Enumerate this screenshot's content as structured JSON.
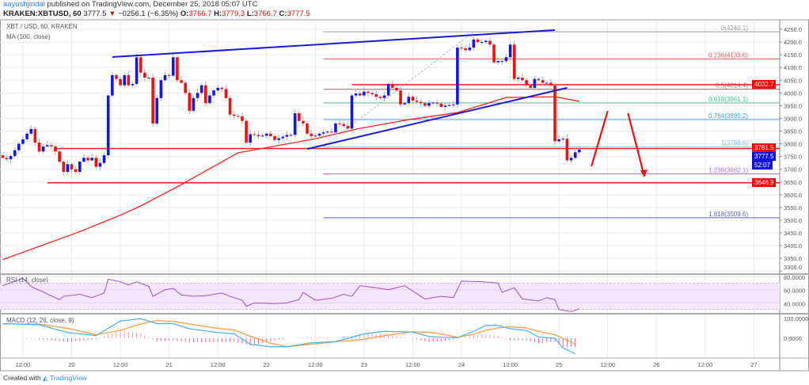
{
  "header": {
    "user": "aayushjindal",
    "published": "published on TradingView.com, December 25, 2018 05:07 UTC",
    "symbol": "KRAKEN:XBTUSD, 60",
    "last": "3777.5",
    "change": "−0256.1 (−6.35%)",
    "change_icon": "triangle-down-icon",
    "o_label": "O:",
    "o": "3766.7",
    "h_label": "H:",
    "h": "3779.3",
    "l_label": "L:",
    "l": "3766.7",
    "c_label": "C:",
    "c": "3777.5"
  },
  "legend": {
    "main": "XBT / USD, 60, KRAKEN",
    "ma": "MA (100, close)",
    "rsi": "RSI (14, close)",
    "macd": "MACD (12, 26, close, 9)"
  },
  "badges": {
    "resistance": {
      "text": "4032.7",
      "color": "#ff0000"
    },
    "level_upper": {
      "text": "3781.5",
      "color": "#ff0000"
    },
    "price": {
      "text": "3777.5",
      "color": "#1010ee"
    },
    "countdown": {
      "text": "52:07",
      "color": "#1010ee"
    },
    "level_lower": {
      "text": "3646.9",
      "color": "#ff0000"
    }
  },
  "footer": {
    "created": "Created with",
    "brand": "TradingView",
    "logo_icon": "tradingview-logo-icon"
  },
  "colors": {
    "up": "#1414f0",
    "down": "#ee1111",
    "ma": "#ff2020",
    "rsi": "#a050c8",
    "macd": "#4ab0f0",
    "signal": "#ff9a40",
    "hist": "#f0609a"
  },
  "chart_data": [
    {
      "type": "candlestick",
      "title": "XBT / USD, 60, KRAKEN",
      "interval": "60",
      "start": "19 07:00",
      "closes": [
        3745,
        3740,
        3752,
        3775,
        3800,
        3818,
        3840,
        3858,
        3805,
        3770,
        3790,
        3795,
        3790,
        3770,
        3730,
        3690,
        3720,
        3700,
        3690,
        3730,
        3745,
        3735,
        3745,
        3710,
        3725,
        3755,
        3990,
        4070,
        4055,
        4030,
        4070,
        4030,
        4035,
        4140,
        4080,
        4060,
        4060,
        3880,
        3980,
        4050,
        4070,
        4068,
        4140,
        4050,
        4040,
        4000,
        3930,
        3980,
        4000,
        4030,
        3960,
        3990,
        4010,
        4020,
        4015,
        3980,
        3915,
        3910,
        3908,
        3890,
        3805,
        3838,
        3835,
        3830,
        3832,
        3840,
        3830,
        3815,
        3822,
        3828,
        3835,
        3835,
        3920,
        3890,
        3880,
        3840,
        3830,
        3832,
        3840,
        3845,
        3848,
        3845,
        3880,
        3878,
        3870,
        3860,
        3990,
        3998,
        3990,
        4005,
        4000,
        3995,
        3985,
        3980,
        3990,
        4035,
        4020,
        4010,
        3955,
        3960,
        3985,
        3970,
        3965,
        3960,
        3950,
        3960,
        3962,
        3958,
        3945,
        3950,
        3952,
        3955,
        4178,
        4175,
        4168,
        4178,
        4210,
        4200,
        4200,
        4205,
        4190,
        4120,
        4125,
        4125,
        4140,
        4190,
        4055,
        4060,
        4050,
        4030,
        4020,
        4055,
        4050,
        4040,
        4040,
        4030,
        3810,
        3818,
        3820,
        3735,
        3745,
        3766.7,
        3777.5
      ],
      "ma100": {
        "label": "MA (100, close)",
        "points": [
          [
            "19 07:00",
            3345
          ],
          [
            "20 02:00",
            3455
          ],
          [
            "20 12:00",
            3520
          ],
          [
            "20 17:00",
            3556
          ],
          [
            "21 03:00",
            3640
          ],
          [
            "21 17:00",
            3765
          ],
          [
            "22 12:00",
            3820
          ],
          [
            "22 23:00",
            3861
          ],
          [
            "23 11:00",
            3895
          ],
          [
            "23 23:00",
            3923
          ],
          [
            "24 11:00",
            3982
          ],
          [
            "24 23:00",
            3985
          ],
          [
            "25 05:00",
            3967
          ]
        ]
      },
      "y_ticks": [
        4250,
        4200,
        4150,
        4100,
        4050,
        4000,
        3950,
        3900,
        3850,
        3800,
        3750,
        3700,
        3650,
        3600,
        3550,
        3500,
        3450,
        3400,
        3350,
        3300
      ],
      "x_ticks": [
        [
          "19 12:00",
          "12:00"
        ],
        [
          "20 00:00",
          "20"
        ],
        [
          "20 12:00",
          "12:00"
        ],
        [
          "21 00:00",
          "21"
        ],
        [
          "21 12:00",
          "12:00"
        ],
        [
          "22 00:00",
          "22"
        ],
        [
          "22 12:00",
          "12:00"
        ],
        [
          "23 00:00",
          "23"
        ],
        [
          "23 12:00",
          "12:00"
        ],
        [
          "24 00:00",
          "24"
        ],
        [
          "24 12:00",
          "12:00"
        ],
        [
          "25 00:00",
          "25"
        ],
        [
          "25 12:00",
          "12:00"
        ],
        [
          "26 00:00",
          "26"
        ],
        [
          "26 12:00",
          "12:00"
        ],
        [
          "27 00:00",
          "27"
        ]
      ],
      "ylim": [
        3300,
        4250
      ],
      "grid": true,
      "horizontal_levels": [
        {
          "price": 4032.7,
          "from": "22 21:00"
        },
        {
          "price": 3781.5,
          "from": "19 20:00"
        },
        {
          "price": 3646.9,
          "from": "19 18:00"
        }
      ],
      "trendlines": [
        {
          "from": [
            "20 10:00",
            4141
          ],
          "to": [
            "24 23:00",
            4247
          ]
        },
        {
          "from": [
            "22 10:00",
            3780
          ],
          "to": [
            "25 02:00",
            4020
          ]
        }
      ],
      "arrows": [
        {
          "from": [
            "25 08:00",
            3712
          ],
          "to": [
            "25 12:00",
            3929
          ],
          "head": false
        },
        {
          "from": [
            "25 17:00",
            3920
          ],
          "to": [
            "25 21:00",
            3674
          ],
          "head": true
        }
      ],
      "fibonacci": {
        "from": "22 14:00",
        "anchor_line": {
          "from": [
            "22 14:00",
            3788.6
          ],
          "to": [
            "24 03:00",
            4240.1
          ]
        },
        "levels": [
          {
            "label": "0(4240.1)",
            "price": 4240.1,
            "color": "#9a9a9a"
          },
          {
            "label": "0.236(4133.6)",
            "price": 4133.6,
            "color": "#e06060"
          },
          {
            "label": "0.5(4014.4)",
            "price": 4014.4,
            "color": "#8a6a6a"
          },
          {
            "label": "0.618(3961.1)",
            "price": 3961.1,
            "color": "#40c890"
          },
          {
            "label": "0.764(3895.2)",
            "price": 3895.2,
            "color": "#3aa0d8"
          },
          {
            "label": "1(3788.6)",
            "price": 3788.6,
            "color": "#80c4ec"
          },
          {
            "label": "1.236(3682.1)",
            "price": 3682.1,
            "color": "#b070d8"
          },
          {
            "label": "1.618(3509.6)",
            "price": 3509.6,
            "color": "#5a60d0"
          }
        ]
      }
    },
    {
      "type": "line",
      "title": "RSI (14, close)",
      "y_ticks": [
        80,
        60,
        40
      ],
      "y_tick_labels": [
        "80.0000",
        "60.0000",
        "40.0000"
      ],
      "band": [
        30,
        70
      ],
      "points": [
        [
          "19 07:00",
          66
        ],
        [
          "19 12:00",
          77
        ],
        [
          "19 14:00",
          65
        ],
        [
          "19 21:00",
          45
        ],
        [
          "19 22:00",
          50
        ],
        [
          "20 02:00",
          53
        ],
        [
          "20 05:00",
          48
        ],
        [
          "20 08:00",
          55
        ],
        [
          "20 09:00",
          76
        ],
        [
          "20 12:00",
          72
        ],
        [
          "20 14:00",
          67
        ],
        [
          "20 16:00",
          72
        ],
        [
          "20 19:00",
          65
        ],
        [
          "20 20:00",
          50
        ],
        [
          "20 23:00",
          60
        ],
        [
          "21 01:00",
          62
        ],
        [
          "21 03:00",
          52
        ],
        [
          "21 06:00",
          50
        ],
        [
          "21 09:00",
          51
        ],
        [
          "21 13:00",
          55
        ],
        [
          "21 15:00",
          50
        ],
        [
          "21 18:00",
          44
        ],
        [
          "21 19:00",
          35
        ],
        [
          "21 21:00",
          40
        ],
        [
          "22 02:00",
          39
        ],
        [
          "22 05:00",
          40
        ],
        [
          "22 08:00",
          45
        ],
        [
          "22 09:00",
          56
        ],
        [
          "22 12:00",
          44
        ],
        [
          "22 16:00",
          47
        ],
        [
          "22 19:00",
          53
        ],
        [
          "22 21:00",
          50
        ],
        [
          "22 23:00",
          66
        ],
        [
          "23 04:00",
          62
        ],
        [
          "23 06:00",
          60
        ],
        [
          "23 10:00",
          66
        ],
        [
          "23 14:00",
          50
        ],
        [
          "23 15:00",
          46
        ],
        [
          "23 19:00",
          50
        ],
        [
          "23 22:00",
          48
        ],
        [
          "24 00:00",
          73
        ],
        [
          "24 05:00",
          72
        ],
        [
          "24 09:00",
          70
        ],
        [
          "24 10:00",
          56
        ],
        [
          "24 13:00",
          63
        ],
        [
          "24 15:00",
          46
        ],
        [
          "24 19:00",
          43
        ],
        [
          "24 21:00",
          48
        ],
        [
          "24 23:00",
          45
        ],
        [
          "25 00:00",
          30
        ],
        [
          "25 03:00",
          27
        ],
        [
          "25 05:00",
          31
        ]
      ]
    },
    {
      "type": "line",
      "title": "MACD (12, 26, close, 9)",
      "y_ticks": [
        100,
        0
      ],
      "y_tick_labels": [
        "100.0000",
        "0.0000"
      ],
      "times": [
        "19 07:00",
        "19 16:00",
        "19 23:00",
        "20 06:00",
        "20 12:00",
        "20 17:00",
        "20 21:00",
        "21 01:00",
        "21 05:00",
        "21 12:00",
        "21 16:00",
        "21 20:00",
        "22 01:00",
        "22 05:00",
        "22 11:00",
        "22 17:00",
        "23 00:00",
        "23 05:00",
        "23 12:00",
        "23 16:00",
        "23 19:00",
        "23 23:00",
        "24 03:00",
        "24 06:00",
        "24 09:00",
        "24 12:00",
        "24 16:00",
        "24 19:00",
        "24 23:00",
        "25 01:00",
        "25 04:00"
      ],
      "macd": [
        74,
        68,
        29,
        13,
        87,
        99,
        74,
        74,
        48,
        29,
        22,
        -30,
        -43,
        -43,
        -23,
        -17,
        22,
        35,
        31,
        9,
        5,
        3,
        35,
        65,
        65,
        48,
        39,
        6,
        0,
        -49,
        -78
      ],
      "signal": [
        72,
        72,
        50,
        18,
        40,
        72,
        90,
        85,
        72,
        50,
        42,
        10,
        -25,
        -43,
        -30,
        -18,
        -5,
        13,
        33,
        30,
        22,
        5,
        20,
        40,
        52,
        58,
        52,
        35,
        18,
        0,
        -30
      ]
    }
  ]
}
